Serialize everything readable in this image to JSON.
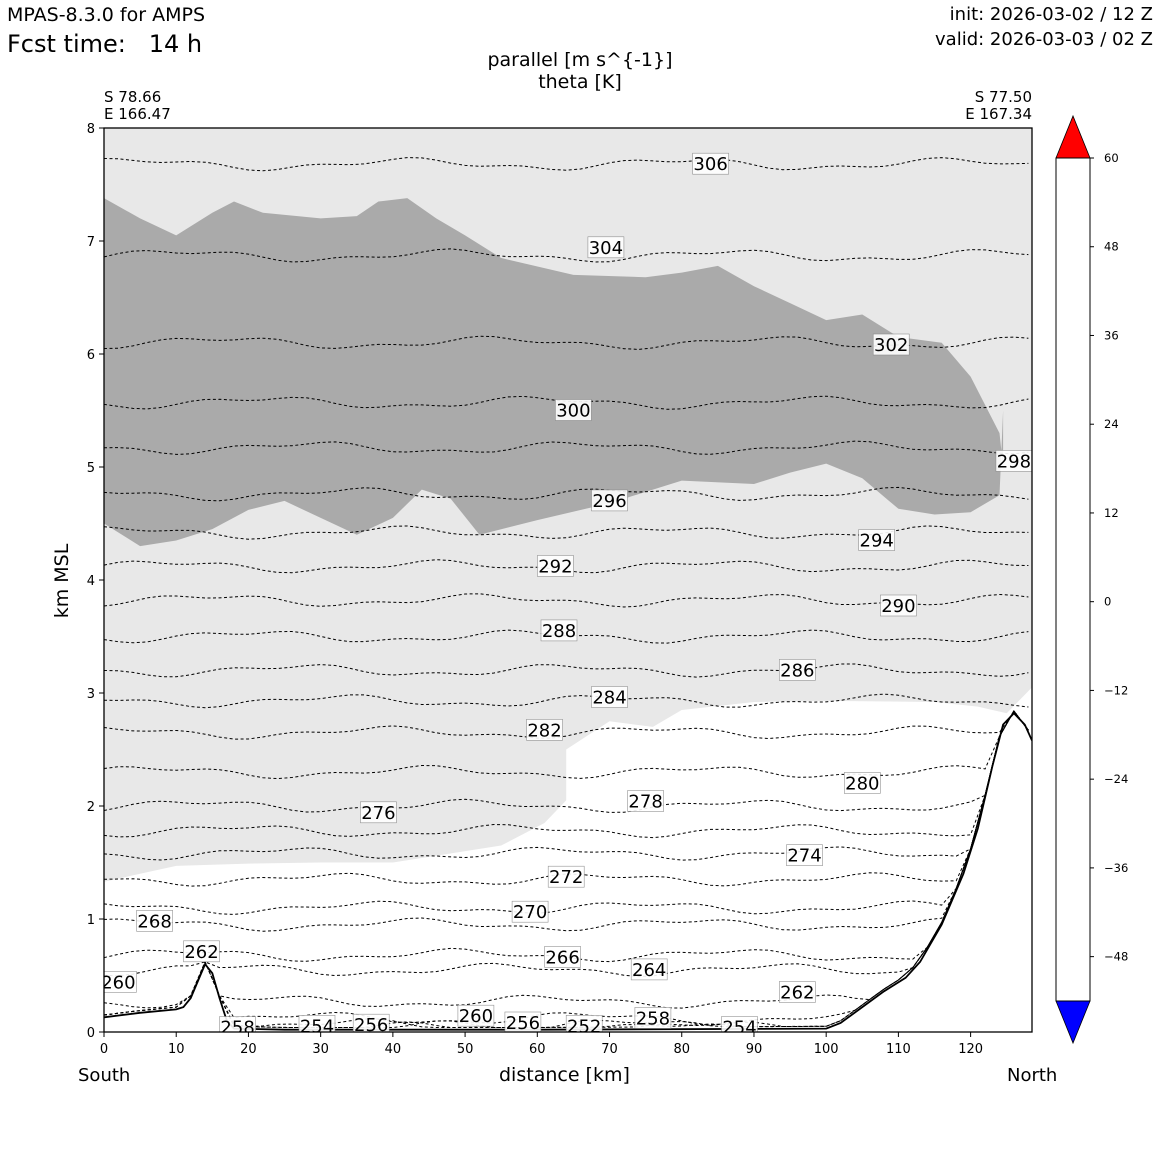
{
  "header": {
    "model": "MPAS-8.3.0 for AMPS",
    "fcst_label": "Fcst time:",
    "fcst_value": "14 h",
    "init": "init: 2026-03-02 / 12 Z",
    "valid": "valid: 2026-03-03 / 02 Z",
    "title_line1": "parallel [m s^{-1}]",
    "title_line2": "theta [K]"
  },
  "corners": {
    "left_lat": "S 78.66",
    "left_lon": "E 166.47",
    "right_lat": "S 77.50",
    "right_lon": "E 167.34"
  },
  "axes": {
    "xlabel": "distance [km]",
    "ylabel": "km MSL",
    "left_end": "South",
    "right_end": "North"
  },
  "colors": {
    "shade_light": "#e8e8e8",
    "shade_dark": "#aaaaaa",
    "terrain": "#000000"
  },
  "chart_data": {
    "type": "cross-section",
    "x": {
      "label": "distance [km]",
      "lim": [
        0,
        128.5
      ],
      "ticks": [
        0,
        10,
        20,
        30,
        40,
        50,
        60,
        70,
        80,
        90,
        100,
        110,
        120
      ]
    },
    "y": {
      "label": "km MSL",
      "lim": [
        0,
        8
      ],
      "ticks": [
        0,
        1,
        2,
        3,
        4,
        5,
        6,
        7,
        8
      ]
    },
    "terrain": [
      [
        0,
        0.13
      ],
      [
        5,
        0.17
      ],
      [
        10,
        0.2
      ],
      [
        11,
        0.22
      ],
      [
        12,
        0.3
      ],
      [
        13,
        0.45
      ],
      [
        14,
        0.6
      ],
      [
        15,
        0.52
      ],
      [
        16,
        0.3
      ],
      [
        17,
        0.1
      ],
      [
        18,
        0.03
      ],
      [
        25,
        0.02
      ],
      [
        60,
        0.02
      ],
      [
        100,
        0.03
      ],
      [
        102,
        0.08
      ],
      [
        105,
        0.22
      ],
      [
        108,
        0.36
      ],
      [
        111,
        0.48
      ],
      [
        113,
        0.62
      ],
      [
        116,
        0.95
      ],
      [
        119,
        1.4
      ],
      [
        121,
        1.8
      ],
      [
        123,
        2.35
      ],
      [
        124.5,
        2.72
      ],
      [
        126,
        2.82
      ],
      [
        127.5,
        2.72
      ],
      [
        128.5,
        2.58
      ]
    ],
    "shading_light_band": {
      "lower": [
        [
          0,
          1.33
        ],
        [
          10,
          1.47
        ],
        [
          20,
          1.49
        ],
        [
          30,
          1.5
        ],
        [
          40,
          1.5
        ],
        [
          55,
          1.65
        ],
        [
          61,
          1.85
        ],
        [
          64,
          2.05
        ],
        [
          64,
          2.5
        ],
        [
          70,
          2.75
        ],
        [
          76,
          2.7
        ],
        [
          80,
          2.85
        ],
        [
          90,
          2.92
        ],
        [
          100,
          2.93
        ],
        [
          115,
          2.92
        ],
        [
          121,
          2.88
        ],
        [
          125,
          2.82
        ],
        [
          128.5,
          3.05
        ]
      ],
      "upper": [
        [
          0,
          8
        ],
        [
          128.5,
          8
        ]
      ]
    },
    "shading_dark_band": {
      "lower": [
        [
          0,
          4.5
        ],
        [
          5,
          4.3
        ],
        [
          10,
          4.35
        ],
        [
          15,
          4.45
        ],
        [
          20,
          4.62
        ],
        [
          25,
          4.7
        ],
        [
          30,
          4.55
        ],
        [
          35,
          4.4
        ],
        [
          40,
          4.55
        ],
        [
          44,
          4.8
        ],
        [
          48,
          4.72
        ],
        [
          52,
          4.4
        ],
        [
          60,
          4.53
        ],
        [
          70,
          4.68
        ],
        [
          80,
          4.88
        ],
        [
          90,
          4.85
        ],
        [
          95,
          4.95
        ],
        [
          100,
          5.03
        ],
        [
          105,
          4.9
        ],
        [
          110,
          4.63
        ],
        [
          115,
          4.58
        ],
        [
          120,
          4.6
        ],
        [
          124,
          4.75
        ],
        [
          124.5,
          5.5
        ]
      ],
      "upper": [
        [
          0,
          7.38
        ],
        [
          5,
          7.2
        ],
        [
          10,
          7.05
        ],
        [
          15,
          7.25
        ],
        [
          18,
          7.35
        ],
        [
          22,
          7.25
        ],
        [
          30,
          7.2
        ],
        [
          35,
          7.22
        ],
        [
          38,
          7.35
        ],
        [
          42,
          7.38
        ],
        [
          46,
          7.2
        ],
        [
          50,
          7.05
        ],
        [
          55,
          6.85
        ],
        [
          65,
          6.7
        ],
        [
          75,
          6.68
        ],
        [
          80,
          6.72
        ],
        [
          85,
          6.78
        ],
        [
          90,
          6.6
        ],
        [
          95,
          6.45
        ],
        [
          100,
          6.3
        ],
        [
          105,
          6.35
        ],
        [
          110,
          6.15
        ],
        [
          116,
          6.1
        ],
        [
          120,
          5.8
        ],
        [
          124,
          5.3
        ],
        [
          124.5,
          5.0
        ]
      ],
      "values_range": [
        12,
        18
      ]
    },
    "theta_contours": [
      {
        "level": 258,
        "y": 0.04
      },
      {
        "level": 254,
        "y": 0.03
      },
      {
        "level": 256,
        "y": 0.06
      },
      {
        "level": 260,
        "y": 0.12
      },
      {
        "level": 262,
        "y": 0.27
      },
      {
        "level": 264,
        "y": 0.55
      },
      {
        "level": 266,
        "y": 0.68
      },
      {
        "level": 268,
        "y": 0.95
      },
      {
        "level": 270,
        "y": 1.1
      },
      {
        "level": 272,
        "y": 1.35
      },
      {
        "level": 274,
        "y": 1.58
      },
      {
        "level": 276,
        "y": 1.78
      },
      {
        "level": 278,
        "y": 2.0
      },
      {
        "level": 280,
        "y": 2.3
      },
      {
        "level": 282,
        "y": 2.65
      },
      {
        "level": 284,
        "y": 2.93
      },
      {
        "level": 286,
        "y": 3.2
      },
      {
        "level": 288,
        "y": 3.5
      },
      {
        "level": 290,
        "y": 3.82
      },
      {
        "level": 292,
        "y": 4.12
      },
      {
        "level": 294,
        "y": 4.42
      },
      {
        "level": 296,
        "y": 4.76
      },
      {
        "level": 298,
        "y": 5.17
      },
      {
        "level": 300,
        "y": 5.57
      },
      {
        "level": 302,
        "y": 6.1
      },
      {
        "level": 304,
        "y": 6.87
      },
      {
        "level": 306,
        "y": 7.68
      }
    ],
    "contour_labels": [
      {
        "text": "306",
        "x": 84,
        "y": 7.68
      },
      {
        "text": "304",
        "x": 69.5,
        "y": 6.94
      },
      {
        "text": "302",
        "x": 109,
        "y": 6.08
      },
      {
        "text": "300",
        "x": 65,
        "y": 5.5
      },
      {
        "text": "298",
        "x": 126,
        "y": 5.05
      },
      {
        "text": "296",
        "x": 70,
        "y": 4.7
      },
      {
        "text": "294",
        "x": 107,
        "y": 4.35
      },
      {
        "text": "292",
        "x": 62.5,
        "y": 4.12
      },
      {
        "text": "290",
        "x": 110,
        "y": 3.77
      },
      {
        "text": "288",
        "x": 63,
        "y": 3.55
      },
      {
        "text": "286",
        "x": 96,
        "y": 3.2
      },
      {
        "text": "284",
        "x": 70,
        "y": 2.96
      },
      {
        "text": "282",
        "x": 61,
        "y": 2.67
      },
      {
        "text": "280",
        "x": 105,
        "y": 2.2
      },
      {
        "text": "278",
        "x": 75,
        "y": 2.04
      },
      {
        "text": "276",
        "x": 38,
        "y": 1.94
      },
      {
        "text": "274",
        "x": 97,
        "y": 1.56
      },
      {
        "text": "272",
        "x": 64,
        "y": 1.37
      },
      {
        "text": "270",
        "x": 59,
        "y": 1.06
      },
      {
        "text": "268",
        "x": 7,
        "y": 0.98
      },
      {
        "text": "266",
        "x": 63.5,
        "y": 0.66
      },
      {
        "text": "264",
        "x": 75.5,
        "y": 0.55
      },
      {
        "text": "262",
        "x": 13.5,
        "y": 0.71
      },
      {
        "text": "262",
        "x": 96,
        "y": 0.35
      },
      {
        "text": "260",
        "x": 2,
        "y": 0.44
      },
      {
        "text": "260",
        "x": 51.5,
        "y": 0.14
      },
      {
        "text": "258",
        "x": 18.5,
        "y": 0.04
      },
      {
        "text": "254",
        "x": 29.5,
        "y": 0.05
      },
      {
        "text": "256",
        "x": 37,
        "y": 0.06
      },
      {
        "text": "256",
        "x": 58,
        "y": 0.08
      },
      {
        "text": "252",
        "x": 66.5,
        "y": 0.05
      },
      {
        "text": "258",
        "x": 76,
        "y": 0.12
      },
      {
        "text": "254",
        "x": 88,
        "y": 0.04
      }
    ],
    "colorbar": {
      "label_ticks": [
        "60",
        "48",
        "36",
        "24",
        "12",
        "0",
        "−12",
        "−24",
        "−36",
        "−48"
      ],
      "levels": [
        60,
        54,
        48,
        42,
        36,
        30,
        24,
        18,
        12,
        6,
        0,
        -6,
        -12,
        -18,
        -24,
        -30,
        -36,
        -42,
        -48,
        -54
      ],
      "colors": [
        "#ff0000",
        "#ff6e6e",
        "#ffe66e",
        "#ffff32",
        "#ffff64",
        "#ffffa8",
        "#c0c0a8",
        "#a9a9a9",
        "#e8e8e8",
        "#ffffff",
        "#ffffff",
        "#f0fff0",
        "#dcffdc",
        "#b0ffb0",
        "#64ff64",
        "#20ff20",
        "#00e560",
        "#00c8c8",
        "#0000ff"
      ],
      "top_extend": "#ff0000",
      "bottom_extend": "#0000ff"
    }
  }
}
